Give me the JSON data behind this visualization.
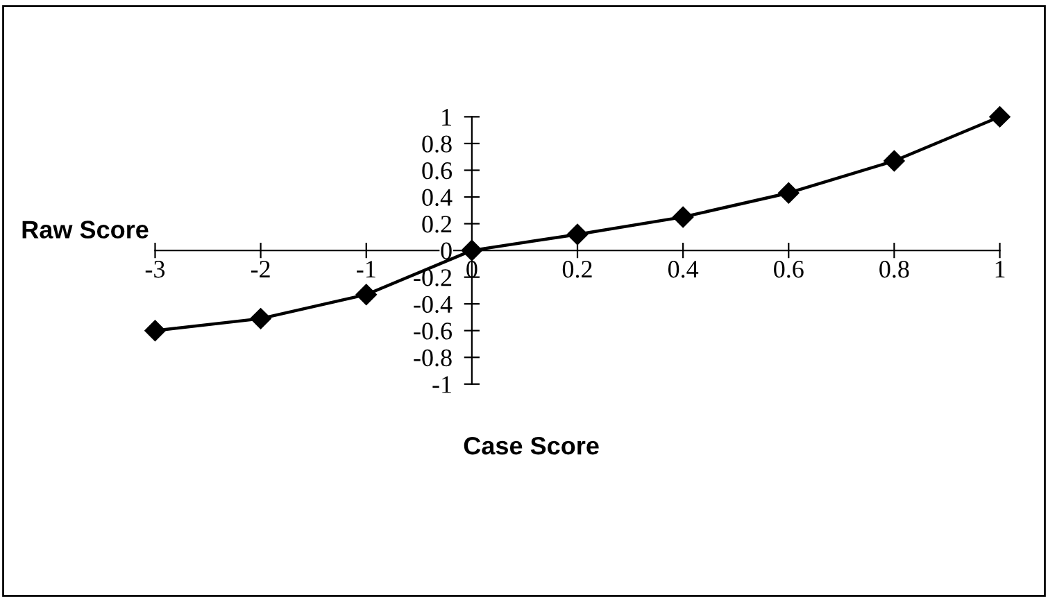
{
  "chart_data": {
    "type": "line",
    "xlabel": "Case Score",
    "ylabel": "Raw Score",
    "categories": [
      "-3",
      "-2",
      "-1",
      "0",
      "0.2",
      "0.4",
      "0.6",
      "0.8",
      "1"
    ],
    "series": [
      {
        "color": "#000000",
        "values": [
          -0.6,
          -0.51,
          -0.33,
          0,
          0.12,
          0.25,
          0.43,
          0.67,
          1.0
        ]
      }
    ],
    "marker": "diamond",
    "line_style": "solid",
    "ylim": [
      -1,
      1
    ],
    "yticks": [
      -1,
      -0.8,
      -0.6,
      -0.4,
      -0.2,
      0,
      0.2,
      0.4,
      0.6,
      0.8,
      1
    ],
    "grid": false,
    "legend": false
  }
}
